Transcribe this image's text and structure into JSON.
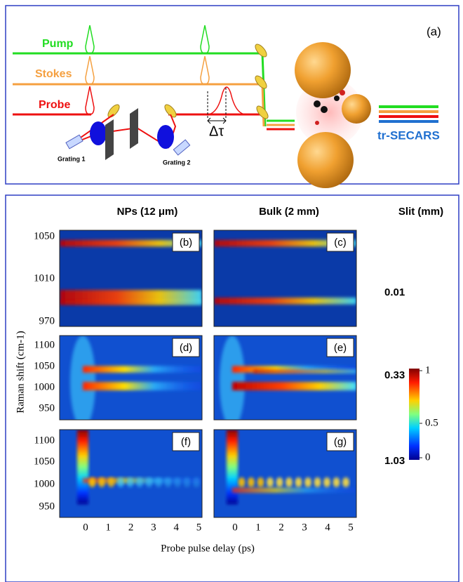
{
  "diagram": {
    "label": "(a)",
    "beams": [
      "Pump",
      "Stokes",
      "Probe"
    ],
    "gratings": [
      "Grating 1",
      "Grating 2"
    ],
    "delay": "Δτ",
    "output": "tr-SECARS"
  },
  "figure": {
    "columns": [
      "NPs  (12 μm)",
      "Bulk  (2 mm)"
    ],
    "slit_title": "Slit (mm)",
    "panels": [
      "(b)",
      "(c)",
      "(d)",
      "(e)",
      "(f)",
      "(g)"
    ],
    "rows": [
      {
        "yticks": [
          1050,
          1010,
          970
        ],
        "slit": "0.01"
      },
      {
        "yticks": [
          1100,
          1050,
          1000,
          950
        ],
        "slit": "0.33"
      },
      {
        "yticks": [
          1100,
          1050,
          1000,
          950
        ],
        "slit": "1.03"
      }
    ],
    "xticks": [
      0,
      1,
      2,
      3,
      4,
      5
    ],
    "xlabel": "Probe pulse delay (ps)",
    "ylabel": "Raman shift (cm-1)",
    "colorbar_ticks": [
      1,
      0.5,
      0
    ]
  }
}
